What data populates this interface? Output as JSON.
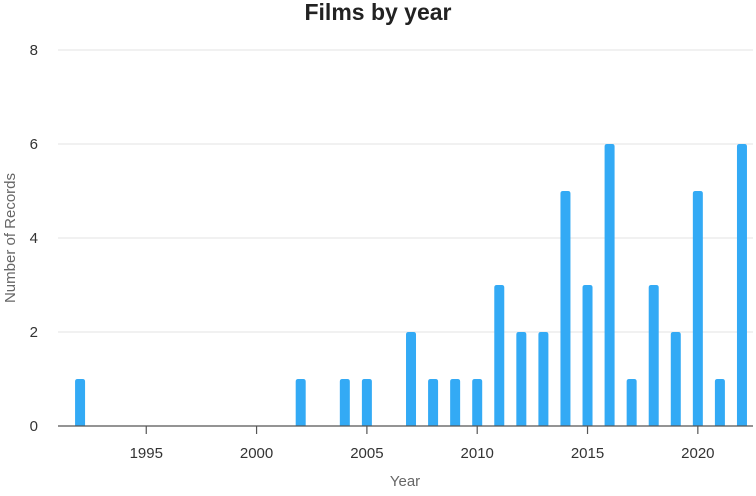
{
  "chart_data": {
    "type": "bar",
    "title": "Films by year",
    "xlabel": "Year",
    "ylabel": "Number of Records",
    "x": [
      1992,
      2002,
      2004,
      2005,
      2007,
      2008,
      2009,
      2010,
      2011,
      2012,
      2013,
      2014,
      2015,
      2016,
      2017,
      2018,
      2019,
      2020,
      2021,
      2022
    ],
    "values": [
      1,
      1,
      1,
      1,
      2,
      1,
      1,
      1,
      3,
      2,
      2,
      5,
      3,
      6,
      1,
      3,
      2,
      5,
      1,
      6
    ],
    "xlim": [
      1991,
      2022.5
    ],
    "ylim": [
      0,
      8
    ],
    "xticks": [
      "1995",
      "2000",
      "2005",
      "2010",
      "2015",
      "2020"
    ],
    "yticks": [
      "0",
      "2",
      "4",
      "6",
      "8"
    ],
    "grid": true,
    "bar_color": "#33aaf5"
  }
}
